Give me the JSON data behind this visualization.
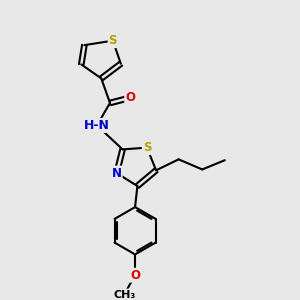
{
  "bg_color": "#e8e8e8",
  "bond_color": "#000000",
  "bond_width": 1.5,
  "atom_colors": {
    "S": "#b8a000",
    "N": "#0000cc",
    "O": "#dd0000",
    "C": "#000000",
    "H": "#000000"
  },
  "font_size": 8.5,
  "fig_width": 3.0,
  "fig_height": 3.0,
  "dpi": 100,
  "xlim": [
    0,
    10
  ],
  "ylim": [
    0,
    10
  ]
}
